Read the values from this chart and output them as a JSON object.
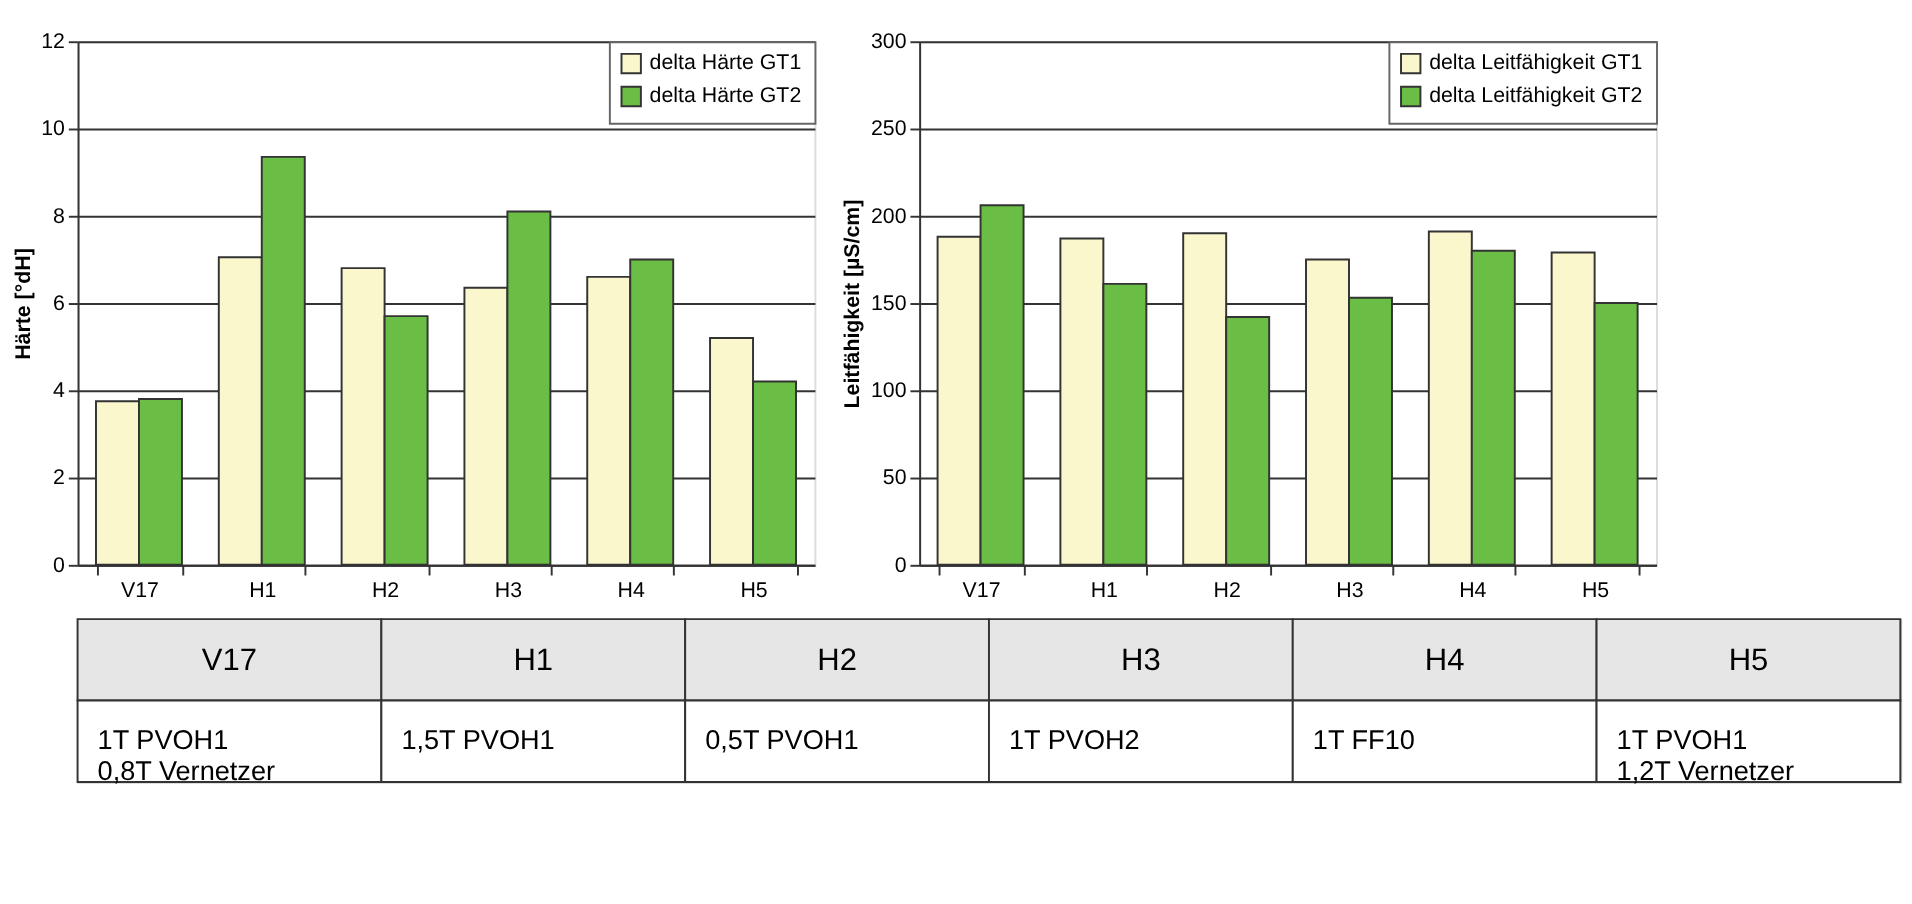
{
  "chart_data": [
    {
      "type": "bar",
      "ylabel": "Härte [°dH]",
      "categories": [
        "V17",
        "H1",
        "H2",
        "H3",
        "H4",
        "H5"
      ],
      "ylim": [
        0,
        12
      ],
      "yticks": [
        0,
        2,
        4,
        6,
        8,
        10,
        12
      ],
      "grid": "y",
      "legend": "top right",
      "series": [
        {
          "name": "delta Härte GT1",
          "color": "#faf7cc",
          "values": [
            3.75,
            7.05,
            6.8,
            6.35,
            6.6,
            5.2
          ]
        },
        {
          "name": "delta Härte GT2",
          "color": "#6abd45",
          "values": [
            3.8,
            9.35,
            5.7,
            8.1,
            7.0,
            4.2
          ]
        }
      ]
    },
    {
      "type": "bar",
      "ylabel": "Leitfähigkeit [µS/cm]",
      "categories": [
        "V17",
        "H1",
        "H2",
        "H3",
        "H4",
        "H5"
      ],
      "ylim": [
        0,
        300
      ],
      "yticks": [
        0,
        50,
        100,
        150,
        200,
        250,
        300
      ],
      "grid": "y",
      "legend": "top right",
      "series": [
        {
          "name": "delta Leitfähigkeit GT1",
          "color": "#faf7cc",
          "values": [
            188,
            187,
            190,
            175,
            191,
            179
          ]
        },
        {
          "name": "delta Leitfähigkeit GT2",
          "color": "#6abd45",
          "values": [
            206,
            161,
            142,
            153,
            180,
            150
          ]
        }
      ]
    },
    {
      "type": "other",
      "categories": [
        "V17",
        "H1",
        "H2",
        "H3",
        "H4",
        "H5"
      ],
      "annotations": [
        "1T PVOH1\n0,8T Vernetzer",
        "1,5T PVOH1",
        "0,5T PVOH1",
        "1T PVOH2",
        "1T FF10",
        "1T PVOH1\n1,2T Vernetzer"
      ]
    }
  ]
}
